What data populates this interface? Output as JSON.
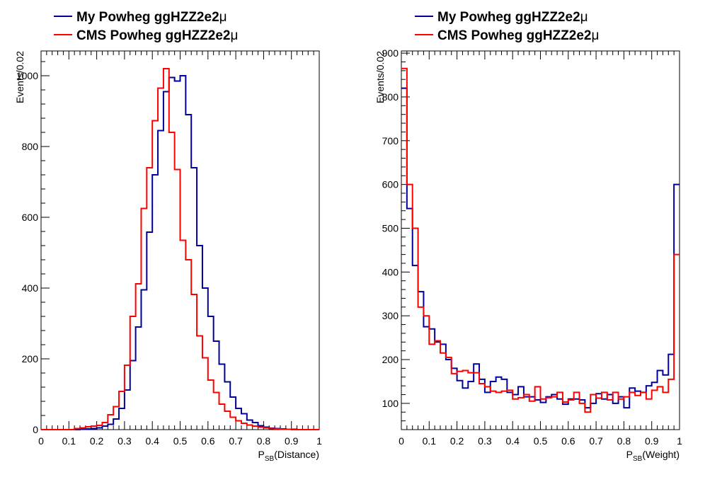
{
  "chart_data": [
    {
      "type": "line",
      "step": true,
      "title": "",
      "xlabel_main": "P",
      "xlabel_sub": "SB",
      "xlabel_paren": "(Distance)",
      "ylabel": "Events/0.02",
      "xlim": [
        0,
        1
      ],
      "ylim": [
        0,
        1070
      ],
      "xticks": [
        "0",
        "0.1",
        "0.2",
        "0.3",
        "0.4",
        "0.5",
        "0.6",
        "0.7",
        "0.8",
        "0.9",
        "1"
      ],
      "xtick_values": [
        0,
        0.1,
        0.2,
        0.3,
        0.4,
        0.5,
        0.6,
        0.7,
        0.8,
        0.9,
        1
      ],
      "yticks": [
        "0",
        "200",
        "400",
        "600",
        "800",
        "1000"
      ],
      "ytick_values": [
        0,
        200,
        400,
        600,
        800,
        1000
      ],
      "legend": [
        {
          "label": "My Powheg ggHZZ2e2",
          "suffix": "μ",
          "color": "#000099"
        },
        {
          "label": "CMS Powheg ggHZZ2e2",
          "suffix": "μ",
          "color": "#ff0000"
        }
      ],
      "bin_width": 0.02,
      "series": [
        {
          "name": "My Powheg ggHZZ2e2μ",
          "color": "#000099",
          "values": [
            0,
            0,
            0,
            0,
            0,
            0,
            0,
            2,
            2,
            3,
            5,
            10,
            15,
            30,
            60,
            112,
            195,
            290,
            395,
            558,
            720,
            845,
            955,
            995,
            985,
            1000,
            890,
            740,
            520,
            400,
            320,
            250,
            185,
            135,
            92,
            60,
            45,
            27,
            20,
            11,
            7,
            4,
            3,
            2,
            1,
            1,
            0,
            0,
            0,
            0
          ]
        },
        {
          "name": "CMS Powheg ggHZZ2e2μ",
          "color": "#ff0000",
          "values": [
            0,
            0,
            0,
            0,
            0,
            0,
            3,
            5,
            8,
            10,
            12,
            20,
            42,
            65,
            108,
            182,
            320,
            412,
            625,
            740,
            873,
            965,
            1020,
            840,
            735,
            535,
            480,
            382,
            265,
            203,
            140,
            105,
            72,
            52,
            35,
            25,
            18,
            13,
            10,
            7,
            5,
            3,
            2,
            1,
            1,
            0,
            0,
            0,
            0,
            0
          ]
        }
      ]
    },
    {
      "type": "line",
      "step": true,
      "title": "",
      "xlabel_main": "P",
      "xlabel_sub": "SB",
      "xlabel_paren": "(Weight)",
      "ylabel": "Events/0.02",
      "xlim": [
        0,
        1
      ],
      "ylim": [
        40,
        905
      ],
      "xticks": [
        "0",
        "0.1",
        "0.2",
        "0.3",
        "0.4",
        "0.5",
        "0.6",
        "0.7",
        "0.8",
        "0.9",
        "1"
      ],
      "xtick_values": [
        0,
        0.1,
        0.2,
        0.3,
        0.4,
        0.5,
        0.6,
        0.7,
        0.8,
        0.9,
        1
      ],
      "yticks": [
        "100",
        "200",
        "300",
        "400",
        "500",
        "600",
        "700",
        "800",
        "900"
      ],
      "ytick_values": [
        100,
        200,
        300,
        400,
        500,
        600,
        700,
        800,
        900
      ],
      "legend": [
        {
          "label": "My Powheg ggHZZ2e2",
          "suffix": "μ",
          "color": "#000099"
        },
        {
          "label": "CMS Powheg ggHZZ2e2",
          "suffix": "μ",
          "color": "#ff0000"
        }
      ],
      "bin_width": 0.02,
      "series": [
        {
          "name": "My Powheg ggHZZ2e2μ",
          "color": "#000099",
          "values": [
            820,
            545,
            415,
            355,
            275,
            270,
            240,
            235,
            200,
            180,
            152,
            135,
            150,
            190,
            155,
            125,
            150,
            160,
            155,
            125,
            120,
            138,
            115,
            115,
            108,
            102,
            115,
            120,
            110,
            98,
            110,
            110,
            108,
            90,
            100,
            122,
            110,
            120,
            100,
            115,
            90,
            135,
            128,
            125,
            140,
            148,
            175,
            165,
            212,
            600
          ]
        },
        {
          "name": "CMS Powheg ggHZZ2e2μ",
          "color": "#ff0000",
          "values": [
            865,
            600,
            500,
            320,
            300,
            235,
            243,
            215,
            205,
            168,
            173,
            175,
            170,
            170,
            145,
            138,
            128,
            125,
            128,
            130,
            110,
            113,
            120,
            105,
            138,
            110,
            113,
            115,
            125,
            103,
            108,
            125,
            100,
            80,
            120,
            112,
            125,
            108,
            125,
            110,
            115,
            125,
            118,
            125,
            110,
            130,
            138,
            125,
            155,
            440
          ]
        }
      ]
    }
  ]
}
